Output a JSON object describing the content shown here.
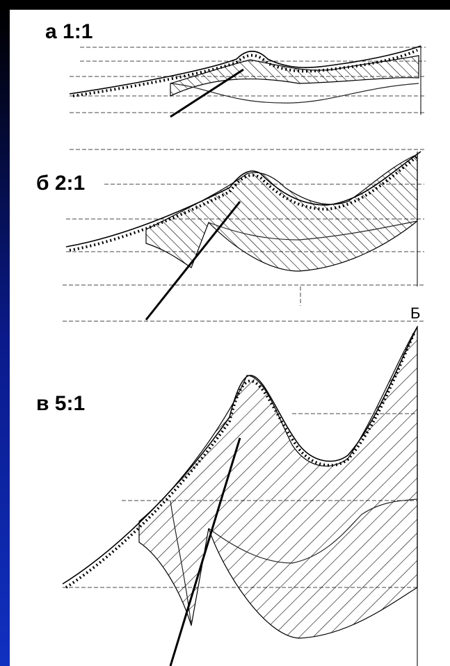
{
  "panels": [
    {
      "label": "а 1:1"
    },
    {
      "label": "б 2:1"
    },
    {
      "label": "в 5:1"
    }
  ],
  "point_label": "Б"
}
